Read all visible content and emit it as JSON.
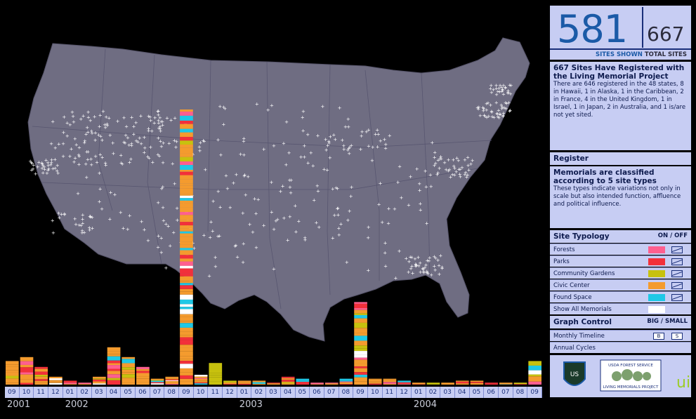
{
  "counts": {
    "shown": "581",
    "total": "667",
    "shown_label": "SITES SHOWN",
    "total_label": "TOTAL SITES"
  },
  "info1": {
    "heading": "667 Sites Have Registered with the Living Memorial Project",
    "body": "There are 646 registered in the 48 states, 8 in Hawaii, 1 in Alaska, 1 in the Caribbean, 2 in France, 4 in the United Kingdom, 1 in Israel, 1 in Japan, 2 in Australia, and 1 is/are not yet sited."
  },
  "register_label": "Register",
  "info2": {
    "heading": "Memorials are classified according to 5 site types",
    "body": "These types indicate variations not only in scale but also intended function, affluence and political influence."
  },
  "typology": {
    "title": "Site Typology",
    "onoff": "ON / OFF",
    "items": [
      {
        "label": "Forests",
        "color": "#ff5f8f"
      },
      {
        "label": "Parks",
        "color": "#f2303a"
      },
      {
        "label": "Community Gardens",
        "color": "#c7c10e"
      },
      {
        "label": "Civic Center",
        "color": "#f49b2e"
      },
      {
        "label": "Found Space",
        "color": "#1ec8e6"
      }
    ],
    "show_all": "Show All Memorials"
  },
  "graph": {
    "title": "Graph Control",
    "bigsmall": "BIG / SMALL",
    "monthly": "Monthly Timeline",
    "monthly_btn1": "B",
    "monthly_btn2": "S",
    "annual": "Annual Cycles"
  },
  "logos": {
    "left": "U.S. Forest Service shield",
    "center_line1": "USDA FOREST SERVICE",
    "center_line2": "LIVING MEMORIALS PROJECT",
    "right": "ui"
  },
  "timeline": {
    "months": [
      "09",
      "10",
      "11",
      "12",
      "01",
      "02",
      "03",
      "04",
      "05",
      "06",
      "07",
      "08",
      "09",
      "10",
      "11",
      "12",
      "01",
      "02",
      "03",
      "04",
      "05",
      "06",
      "07",
      "08",
      "09",
      "10",
      "11",
      "12",
      "01",
      "02",
      "03",
      "04",
      "05",
      "06",
      "07",
      "08",
      "09"
    ],
    "years": [
      {
        "label": "2001",
        "month_index": 0
      },
      {
        "label": "2002",
        "month_index": 4
      },
      {
        "label": "2003",
        "month_index": 16
      },
      {
        "label": "2004",
        "month_index": 28
      }
    ],
    "counts": [
      12,
      14,
      9,
      4,
      2,
      1,
      4,
      19,
      14,
      9,
      3,
      4,
      140,
      5,
      11,
      2,
      2,
      2,
      1,
      4,
      3,
      1,
      1,
      3,
      42,
      3,
      3,
      2,
      1,
      1,
      1,
      2,
      2,
      1,
      1,
      1,
      12
    ],
    "colors": {
      "forests": "#ff5f8f",
      "parks": "#f2303a",
      "gardens": "#c7c10e",
      "civic": "#f49b2e",
      "found": "#1ec8e6",
      "white": "#ffffff"
    }
  },
  "markers": {
    "color": "#ffffff"
  }
}
